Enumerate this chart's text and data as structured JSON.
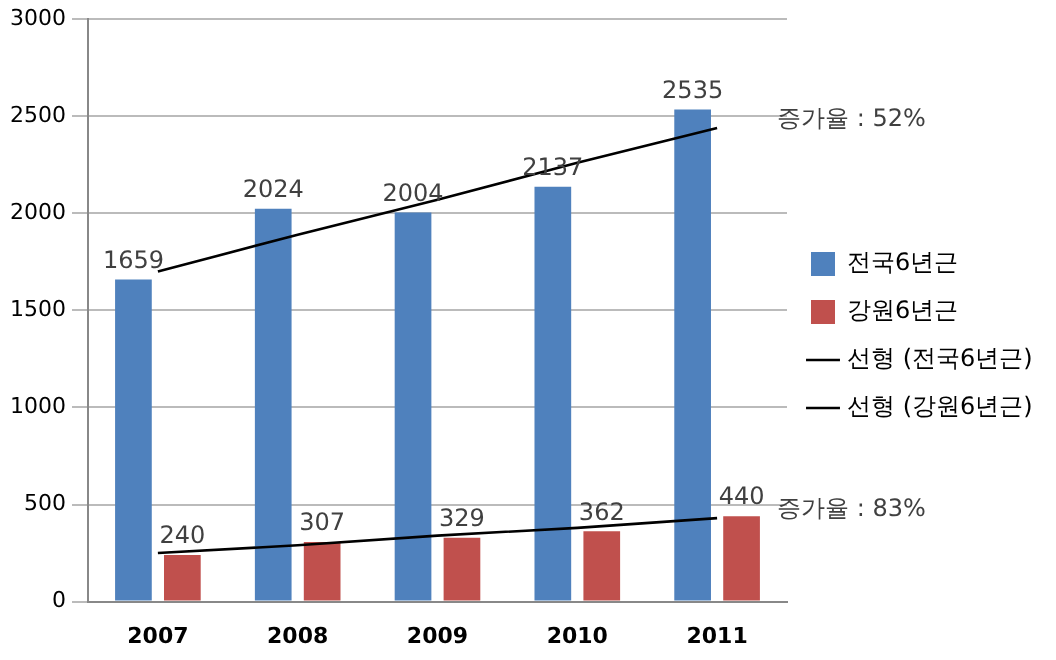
{
  "chart_data": {
    "type": "bar",
    "categories": [
      "2007",
      "2008",
      "2009",
      "2010",
      "2011"
    ],
    "series": [
      {
        "name": "전국6년근",
        "color": "#4f81bd",
        "values": [
          1659,
          2024,
          2004,
          2137,
          2535
        ],
        "value_labels": [
          "1659",
          "2024",
          "2004",
          "2137",
          "2535"
        ]
      },
      {
        "name": "강원6년근",
        "color": "#c0504d",
        "values": [
          240,
          307,
          329,
          362,
          440
        ],
        "value_labels": [
          "240",
          "307",
          "329",
          "362",
          "440"
        ]
      },
      {
        "name": "선형 (전국6년근)",
        "type": "line",
        "color": "#000000",
        "values": [
          1700,
          1890,
          2070,
          2260,
          2440
        ]
      },
      {
        "name": "선형 (강원6년근)",
        "type": "line",
        "color": "#000000",
        "values": [
          250,
          290,
          340,
          380,
          430
        ]
      }
    ],
    "ylim": [
      0,
      3000
    ],
    "yticks": [
      0,
      500,
      1000,
      1500,
      2000,
      2500,
      3000
    ],
    "grid": "y",
    "legend": "right",
    "marker": "none",
    "annotations": [
      {
        "text": "증가율 : 52%",
        "x": "2011",
        "y": 2440
      },
      {
        "text": "증가율 : 83%",
        "x": "2011",
        "y": 430
      }
    ]
  }
}
